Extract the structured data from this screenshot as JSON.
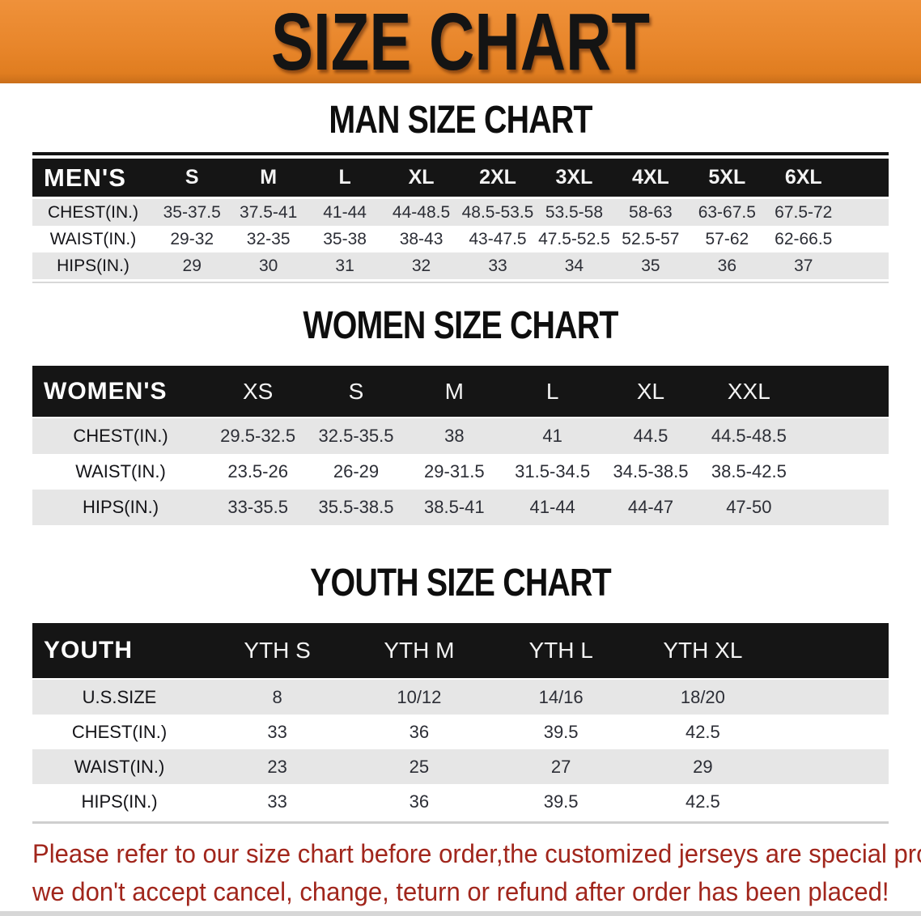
{
  "banner": {
    "title": "SIZE CHART",
    "bg_color": "#e8862b",
    "text_color": "#141414"
  },
  "sections": [
    {
      "id": "men",
      "heading": "MAN SIZE CHART",
      "table": {
        "title": "MEN'S",
        "columns": [
          "S",
          "M",
          "L",
          "XL",
          "2XL",
          "3XL",
          "4XL",
          "5XL",
          "6XL"
        ],
        "rows": [
          {
            "label": "CHEST(IN.)",
            "values": [
              "35-37.5",
              "37.5-41",
              "41-44",
              "44-48.5",
              "48.5-53.5",
              "53.5-58",
              "58-63",
              "63-67.5",
              "67.5-72"
            ]
          },
          {
            "label": "WAIST(IN.)",
            "values": [
              "29-32",
              "32-35",
              "35-38",
              "38-43",
              "43-47.5",
              "47.5-52.5",
              "52.5-57",
              "57-62",
              "62-66.5"
            ]
          },
          {
            "label": "HIPS(IN.)",
            "values": [
              "29",
              "30",
              "31",
              "32",
              "33",
              "34",
              "35",
              "36",
              "37"
            ]
          }
        ]
      }
    },
    {
      "id": "women",
      "heading": "WOMEN SIZE CHART",
      "table": {
        "title": "WOMEN'S",
        "columns": [
          "XS",
          "S",
          "M",
          "L",
          "XL",
          "XXL"
        ],
        "rows": [
          {
            "label": "CHEST(IN.)",
            "values": [
              "29.5-32.5",
              "32.5-35.5",
              "38",
              "41",
              "44.5",
              "44.5-48.5"
            ]
          },
          {
            "label": "WAIST(IN.)",
            "values": [
              "23.5-26",
              "26-29",
              "29-31.5",
              "31.5-34.5",
              "34.5-38.5",
              "38.5-42.5"
            ]
          },
          {
            "label": "HIPS(IN.)",
            "values": [
              "33-35.5",
              "35.5-38.5",
              "38.5-41",
              "41-44",
              "44-47",
              "47-50"
            ]
          }
        ]
      }
    },
    {
      "id": "youth",
      "heading": "YOUTH SIZE CHART",
      "table": {
        "title": "YOUTH",
        "columns": [
          "YTH S",
          "YTH M",
          "YTH L",
          "YTH XL"
        ],
        "rows": [
          {
            "label": "U.S.SIZE",
            "values": [
              "8",
              "10/12",
              "14/16",
              "18/20"
            ]
          },
          {
            "label": "CHEST(IN.)",
            "values": [
              "33",
              "36",
              "39.5",
              "42.5"
            ]
          },
          {
            "label": "WAIST(IN.)",
            "values": [
              "23",
              "25",
              "27",
              "29"
            ]
          },
          {
            "label": "HIPS(IN.)",
            "values": [
              "33",
              "36",
              "39.5",
              "42.5"
            ]
          }
        ]
      }
    }
  ],
  "footer": {
    "lines": [
      "Please refer to our size chart before order,the customized jerseys are special products,",
      "we don't accept cancel, change, teturn or refund after order has been placed!"
    ],
    "text_color": "#a1261c"
  },
  "colors": {
    "header_bar": "#151515",
    "row_gray": "#e6e6e6",
    "row_white": "#ffffff",
    "banner_orange": "#e8862b"
  }
}
